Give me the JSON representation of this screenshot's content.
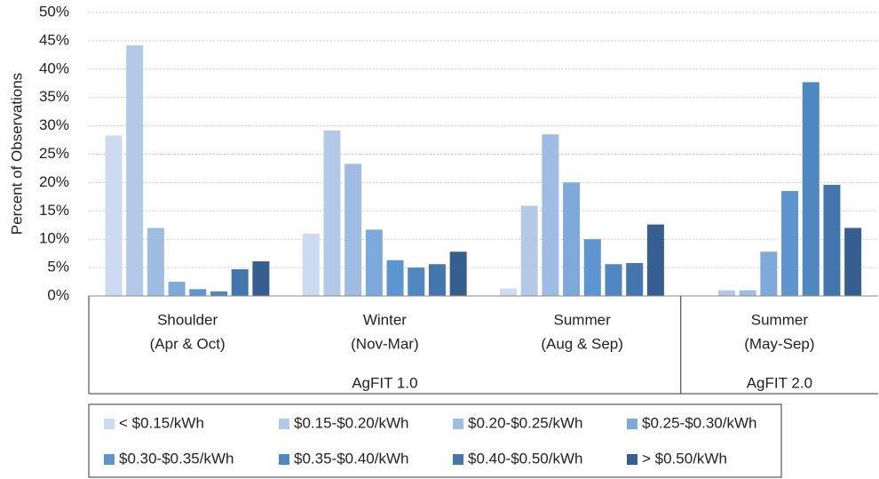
{
  "chart_data": {
    "type": "bar",
    "y_label": "Percent of Observations",
    "categories": [
      [
        "Shoulder",
        "(Apr & Oct)"
      ],
      [
        "Winter",
        "(Nov-Mar)"
      ],
      [
        "Summer",
        "(Aug & Sep)"
      ],
      [
        "Summer",
        "(May-Sep)"
      ]
    ],
    "category_groups": [
      "AgFIT 1.0",
      "AgFIT 1.0",
      "AgFIT 1.0",
      "AgFIT 2.0"
    ],
    "series": [
      {
        "name": "< $0.15/kWh",
        "color": "#ccdbef",
        "values": [
          28.3,
          11,
          1.3,
          0
        ]
      },
      {
        "name": "$0.15-$0.20/kWh",
        "color": "#b4c9e7",
        "values": [
          44.2,
          29.2,
          15.9,
          1
        ]
      },
      {
        "name": "$0.20-$0.25/kWh",
        "color": "#9fbde2",
        "values": [
          12,
          23.3,
          28.5,
          1
        ]
      },
      {
        "name": "$0.25-$0.30/kWh",
        "color": "#7eaadb",
        "values": [
          2.5,
          11.7,
          20,
          7.8
        ]
      },
      {
        "name": "$0.30-$0.35/kWh",
        "color": "#5c95d0",
        "values": [
          1.2,
          6.3,
          10,
          18.5
        ]
      },
      {
        "name": "$0.35-$0.40/kWh",
        "color": "#4f87c1",
        "values": [
          0.8,
          5,
          5.6,
          37.7
        ]
      },
      {
        "name": "$0.40-$0.50/kWh",
        "color": "#4276ac",
        "values": [
          4.7,
          5.6,
          5.8,
          19.6
        ]
      },
      {
        "name": "> $0.50/kWh",
        "color": "#365e90",
        "values": [
          6.1,
          7.8,
          12.6,
          12
        ]
      }
    ],
    "ylim": [
      0,
      50
    ],
    "yticks": [
      {
        "value": 0,
        "label": "0%"
      },
      {
        "value": 5,
        "label": "5%"
      },
      {
        "value": 10,
        "label": "10%"
      },
      {
        "value": 15,
        "label": "15%"
      },
      {
        "value": 20,
        "label": "20%"
      },
      {
        "value": 25,
        "label": "25%"
      },
      {
        "value": 30,
        "label": "30%"
      },
      {
        "value": 35,
        "label": "35%"
      },
      {
        "value": 40,
        "label": "40%"
      },
      {
        "value": 45,
        "label": "45%"
      },
      {
        "value": 50,
        "label": "50%"
      }
    ],
    "grid": true
  }
}
